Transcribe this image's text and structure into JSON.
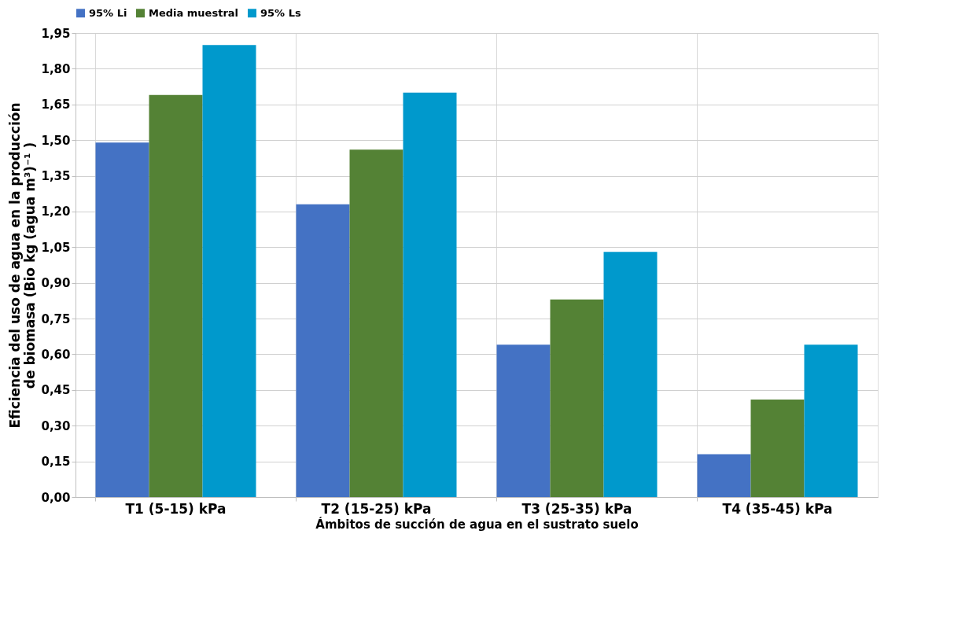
{
  "chart_data": {
    "type": "bar",
    "categories": [
      "T1 (5-15) kPa",
      "T2 (15-25) kPa",
      "T3 (25-35) kPa",
      "T4 (35-45) kPa"
    ],
    "series": [
      {
        "name": "95% Li",
        "color": "#4472c4",
        "values": [
          1.49,
          1.23,
          0.64,
          0.18
        ]
      },
      {
        "name": "Media muestral",
        "color": "#548235",
        "values": [
          1.69,
          1.46,
          0.83,
          0.41
        ]
      },
      {
        "name": "95% Ls",
        "color": "#0099cc",
        "values": [
          1.9,
          1.7,
          1.03,
          0.64
        ]
      }
    ],
    "xlabel": "Ámbitos de succión de agua en el sustrato suelo",
    "ylabel": "Eficiencia del uso de agua en la producción de biomasa (Bio kg  (agua m³)⁻¹ )",
    "ylim": [
      0,
      1.95
    ],
    "yticks": [
      {
        "value": 0,
        "label": "0,00"
      },
      {
        "value": 0.15,
        "label": "0,15"
      },
      {
        "value": 0.3,
        "label": "0,30"
      },
      {
        "value": 0.45,
        "label": "0,45"
      },
      {
        "value": 0.6,
        "label": "0,60"
      },
      {
        "value": 0.75,
        "label": "0,75"
      },
      {
        "value": 0.9,
        "label": "0,90"
      },
      {
        "value": 1.05,
        "label": "1,05"
      },
      {
        "value": 1.2,
        "label": "1,20"
      },
      {
        "value": 1.35,
        "label": "1,35"
      },
      {
        "value": 1.5,
        "label": "1,50"
      },
      {
        "value": 1.65,
        "label": "1,65"
      },
      {
        "value": 1.8,
        "label": "1,80"
      },
      {
        "value": 1.95,
        "label": "1,95"
      }
    ],
    "grid": true,
    "legend": "top"
  }
}
